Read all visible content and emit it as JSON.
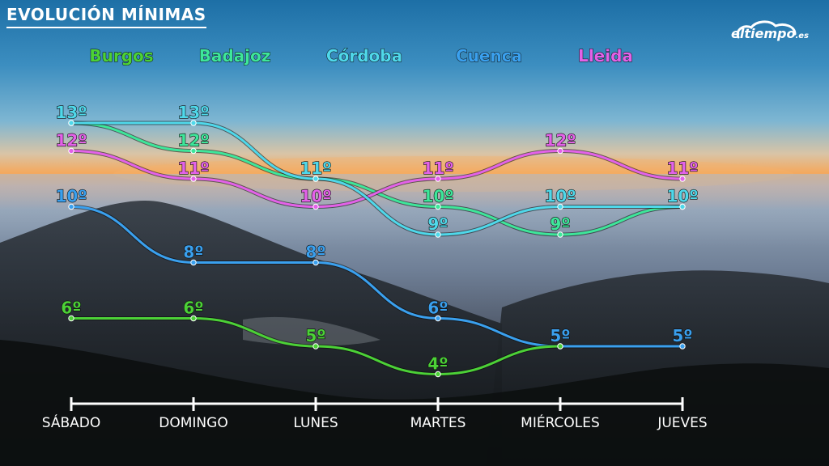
{
  "header": {
    "title": "EVOLUCIÓN MÍNIMAS",
    "logo_main": "eltiempo",
    "logo_tld": ".es"
  },
  "colors": {
    "Burgos": "#4cd137",
    "Badajoz": "#3ee69a",
    "Córdoba": "#4fd8ea",
    "Cuenca": "#3aa0ee",
    "Lleida": "#e362e8"
  },
  "chart_data": {
    "type": "line",
    "title": "EVOLUCIÓN MÍNIMAS",
    "categories": [
      "SÁBADO",
      "DOMINGO",
      "LUNES",
      "MARTES",
      "MIÉRCOLES",
      "JUEVES"
    ],
    "series": [
      {
        "name": "Burgos",
        "values": [
          6,
          6,
          5,
          4,
          5,
          null
        ],
        "labels": [
          "6º",
          "6º",
          "5º",
          "4º",
          "",
          ""
        ]
      },
      {
        "name": "Badajoz",
        "values": [
          13,
          12,
          11,
          10,
          9,
          10
        ],
        "labels": [
          "",
          "12º",
          "",
          "10º",
          "9º",
          ""
        ]
      },
      {
        "name": "Córdoba",
        "values": [
          13,
          13,
          11,
          9,
          10,
          10
        ],
        "labels": [
          "13º",
          "13º",
          "11º",
          "9º",
          "10º",
          "10º"
        ]
      },
      {
        "name": "Cuenca",
        "values": [
          10,
          8,
          8,
          6,
          5,
          5
        ],
        "labels": [
          "10º",
          "8º",
          "8º",
          "6º",
          "5º",
          "5º"
        ]
      },
      {
        "name": "Lleida",
        "values": [
          12,
          11,
          10,
          11,
          12,
          11
        ],
        "labels": [
          "12º",
          "11º",
          "10º",
          "11º",
          "12º",
          "11º"
        ]
      }
    ],
    "legend": "top",
    "grid": false
  }
}
